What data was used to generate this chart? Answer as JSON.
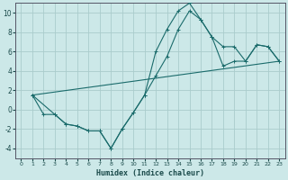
{
  "xlabel": "Humidex (Indice chaleur)",
  "xlim": [
    -0.5,
    23.5
  ],
  "ylim": [
    -5,
    11
  ],
  "yticks": [
    -4,
    -2,
    0,
    2,
    4,
    6,
    8,
    10
  ],
  "xticks": [
    0,
    1,
    2,
    3,
    4,
    5,
    6,
    7,
    8,
    9,
    10,
    11,
    12,
    13,
    14,
    15,
    16,
    17,
    18,
    19,
    20,
    21,
    22,
    23
  ],
  "background_color": "#cce8e8",
  "grid_color": "#aacccc",
  "line_color": "#1a6b6b",
  "series1_x": [
    1,
    2,
    3,
    4,
    5,
    6,
    7,
    8,
    9,
    10,
    11,
    12,
    13,
    14,
    15,
    16,
    17,
    18,
    19,
    20,
    21,
    22,
    23
  ],
  "series1_y": [
    1.5,
    -0.5,
    -0.5,
    -1.5,
    -1.7,
    -2.2,
    -2.2,
    -4.0,
    -2.0,
    -0.3,
    1.5,
    6.0,
    8.3,
    10.2,
    11.0,
    9.3,
    7.5,
    6.5,
    6.5,
    5.0,
    6.7,
    6.5,
    5.0
  ],
  "series2_x": [
    1,
    3,
    4,
    5,
    6,
    7,
    8,
    9,
    10,
    11,
    12,
    13,
    14,
    15,
    16,
    17,
    18,
    19,
    20,
    21,
    22,
    23
  ],
  "series2_y": [
    1.5,
    -0.5,
    -1.5,
    -1.7,
    -2.2,
    -2.2,
    -4.0,
    -2.0,
    -0.3,
    1.5,
    3.5,
    5.5,
    8.3,
    10.2,
    9.3,
    7.5,
    4.5,
    5.0,
    5.0,
    6.7,
    6.5,
    5.0
  ],
  "series3_x": [
    1,
    23
  ],
  "series3_y": [
    1.5,
    5.0
  ]
}
